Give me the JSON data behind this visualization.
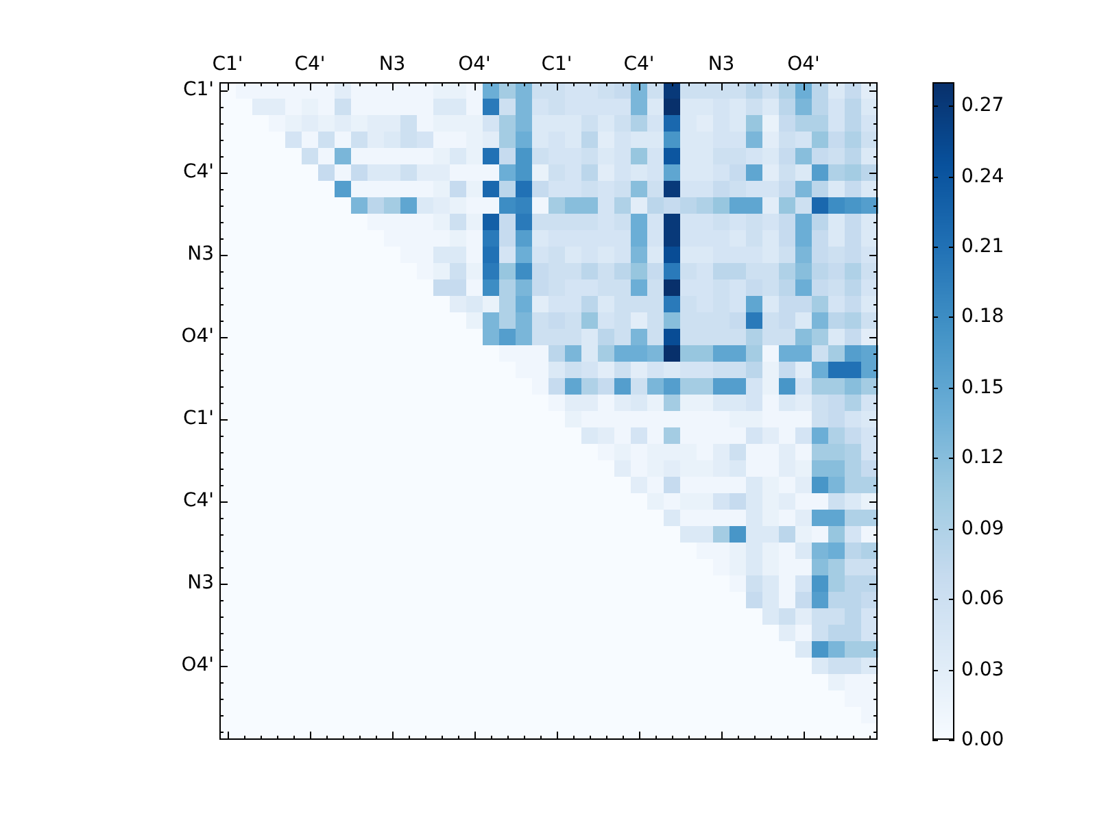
{
  "chart_data": {
    "type": "heatmap",
    "categories": [
      "C1'",
      null,
      null,
      null,
      null,
      "C4'",
      null,
      null,
      null,
      null,
      "N3",
      null,
      null,
      null,
      null,
      "O4'",
      null,
      null,
      null,
      null,
      "C1'",
      null,
      null,
      null,
      null,
      "C4'",
      null,
      null,
      null,
      null,
      "N3",
      null,
      null,
      null,
      null,
      "O4'",
      null,
      null,
      null,
      null
    ],
    "y_categories": [
      "C1'",
      null,
      null,
      null,
      null,
      "C4'",
      null,
      null,
      null,
      null,
      "N3",
      null,
      null,
      null,
      null,
      "O4'",
      null,
      null,
      null,
      null,
      "C1'",
      null,
      null,
      null,
      null,
      "C4'",
      null,
      null,
      null,
      null,
      "N3",
      null,
      null,
      null,
      null,
      "O4'",
      null,
      null,
      null,
      null
    ],
    "clim": [
      0,
      0.28
    ],
    "cticks": [
      {
        "value": 0,
        "label": "0.00"
      },
      {
        "value": 0.03,
        "label": "0.03"
      },
      {
        "value": 0.06,
        "label": "0.06"
      },
      {
        "value": 0.09,
        "label": "0.09"
      },
      {
        "value": 0.12,
        "label": "0.12"
      },
      {
        "value": 0.15,
        "label": "0.15"
      },
      {
        "value": 0.18,
        "label": "0.18"
      },
      {
        "value": 0.21,
        "label": "0.21"
      },
      {
        "value": 0.24,
        "label": "0.24"
      },
      {
        "value": 0.27,
        "label": "0.27"
      }
    ],
    "cells": [
      [
        0,
        0.01,
        0.01,
        0.01,
        0.01,
        0.01,
        0.01,
        0.03,
        0.01,
        0.01,
        0.01,
        0.01,
        0.01,
        0.02,
        0.02,
        0.01,
        0.14,
        0.1,
        0.13,
        0.06,
        0.06,
        0.05,
        0.05,
        0.06,
        0.07,
        0.13,
        0.06,
        0.27,
        0.06,
        0.06,
        0.06,
        0.06,
        0.08,
        0.06,
        0.09,
        0.14,
        0.08,
        0.04,
        0.07,
        0.03
      ],
      [
        0,
        0,
        0.03,
        0.03,
        0.01,
        0.02,
        0.01,
        0.06,
        0.01,
        0.01,
        0.01,
        0.01,
        0.01,
        0.04,
        0.04,
        0.01,
        0.2,
        0.06,
        0.13,
        0.05,
        0.06,
        0.05,
        0.05,
        0.05,
        0.05,
        0.13,
        0.04,
        0.28,
        0.04,
        0.04,
        0.05,
        0.04,
        0.06,
        0.04,
        0.08,
        0.13,
        0.08,
        0.05,
        0.08,
        0.04
      ],
      [
        0,
        0,
        0,
        0.01,
        0.02,
        0.03,
        0.02,
        0.03,
        0.02,
        0.03,
        0.03,
        0.06,
        0.01,
        0.02,
        0.02,
        0.02,
        0.05,
        0.1,
        0.13,
        0.04,
        0.04,
        0.04,
        0.06,
        0.04,
        0.06,
        0.09,
        0.05,
        0.22,
        0.04,
        0.03,
        0.05,
        0.04,
        0.11,
        0.02,
        0.07,
        0.09,
        0.09,
        0.05,
        0.08,
        0.05
      ],
      [
        0,
        0,
        0,
        0,
        0.05,
        0.01,
        0.06,
        0.01,
        0.06,
        0.03,
        0.04,
        0.06,
        0.05,
        0.01,
        0.01,
        0.02,
        0.03,
        0.1,
        0.14,
        0.04,
        0.05,
        0.04,
        0.08,
        0.03,
        0.05,
        0.04,
        0.04,
        0.17,
        0.04,
        0.04,
        0.05,
        0.05,
        0.13,
        0.03,
        0.06,
        0.05,
        0.11,
        0.07,
        0.09,
        0.06
      ],
      [
        0,
        0,
        0,
        0,
        0,
        0.06,
        0.01,
        0.13,
        0.01,
        0.01,
        0.01,
        0.01,
        0.01,
        0.02,
        0.04,
        0.02,
        0.21,
        0.07,
        0.17,
        0.06,
        0.05,
        0.05,
        0.06,
        0.04,
        0.05,
        0.11,
        0.05,
        0.24,
        0.04,
        0.04,
        0.06,
        0.06,
        0.05,
        0.04,
        0.07,
        0.12,
        0.07,
        0.06,
        0.08,
        0.04
      ],
      [
        0,
        0,
        0,
        0,
        0,
        0,
        0.07,
        0.01,
        0.07,
        0.04,
        0.04,
        0.06,
        0.03,
        0.03,
        0.01,
        0.01,
        0.01,
        0.14,
        0.17,
        0.02,
        0.06,
        0.05,
        0.08,
        0.03,
        0.05,
        0.04,
        0.05,
        0.15,
        0.04,
        0.04,
        0.05,
        0.07,
        0.15,
        0.03,
        0.06,
        0.04,
        0.16,
        0.09,
        0.1,
        0.08
      ],
      [
        0,
        0,
        0,
        0,
        0,
        0,
        0,
        0.16,
        0.01,
        0.01,
        0.01,
        0.01,
        0.01,
        0.02,
        0.07,
        0.02,
        0.22,
        0.08,
        0.21,
        0.07,
        0.05,
        0.05,
        0.06,
        0.05,
        0.06,
        0.12,
        0.06,
        0.27,
        0.05,
        0.05,
        0.07,
        0.06,
        0.05,
        0.05,
        0.07,
        0.13,
        0.08,
        0.04,
        0.07,
        0.04
      ],
      [
        0,
        0,
        0,
        0,
        0,
        0,
        0,
        0,
        0.13,
        0.08,
        0.1,
        0.15,
        0.04,
        0.03,
        0.02,
        0.01,
        0.01,
        0.18,
        0.19,
        0.01,
        0.1,
        0.12,
        0.12,
        0.05,
        0.09,
        0.03,
        0.08,
        0.07,
        0.08,
        0.09,
        0.11,
        0.15,
        0.15,
        0.03,
        0.11,
        0.06,
        0.22,
        0.18,
        0.17,
        0.16
      ],
      [
        0,
        0,
        0,
        0,
        0,
        0,
        0,
        0,
        0,
        0.01,
        0.01,
        0.01,
        0.01,
        0.02,
        0.06,
        0.02,
        0.23,
        0.07,
        0.2,
        0.06,
        0.06,
        0.06,
        0.06,
        0.05,
        0.06,
        0.14,
        0.05,
        0.27,
        0.05,
        0.05,
        0.06,
        0.05,
        0.06,
        0.05,
        0.07,
        0.14,
        0.08,
        0.04,
        0.07,
        0.04
      ],
      [
        0,
        0,
        0,
        0,
        0,
        0,
        0,
        0,
        0,
        0,
        0.01,
        0.01,
        0.01,
        0.01,
        0.02,
        0.01,
        0.2,
        0.07,
        0.16,
        0.04,
        0.05,
        0.05,
        0.05,
        0.05,
        0.05,
        0.14,
        0.05,
        0.27,
        0.05,
        0.05,
        0.05,
        0.04,
        0.06,
        0.04,
        0.07,
        0.14,
        0.07,
        0.04,
        0.07,
        0.04
      ],
      [
        0,
        0,
        0,
        0,
        0,
        0,
        0,
        0,
        0,
        0,
        0,
        0.01,
        0.01,
        0.04,
        0.04,
        0.01,
        0.21,
        0.05,
        0.14,
        0.05,
        0.06,
        0.04,
        0.05,
        0.04,
        0.05,
        0.13,
        0.04,
        0.25,
        0.04,
        0.04,
        0.05,
        0.05,
        0.05,
        0.04,
        0.06,
        0.13,
        0.07,
        0.06,
        0.07,
        0.05
      ],
      [
        0,
        0,
        0,
        0,
        0,
        0,
        0,
        0,
        0,
        0,
        0,
        0,
        0.01,
        0.02,
        0.06,
        0.02,
        0.2,
        0.11,
        0.18,
        0.07,
        0.06,
        0.06,
        0.08,
        0.06,
        0.08,
        0.11,
        0.07,
        0.2,
        0.06,
        0.05,
        0.08,
        0.08,
        0.06,
        0.06,
        0.09,
        0.12,
        0.08,
        0.07,
        0.09,
        0.06
      ],
      [
        0,
        0,
        0,
        0,
        0,
        0,
        0,
        0,
        0,
        0,
        0,
        0,
        0,
        0.07,
        0.07,
        0.01,
        0.18,
        0.09,
        0.13,
        0.07,
        0.06,
        0.05,
        0.05,
        0.06,
        0.06,
        0.14,
        0.06,
        0.28,
        0.05,
        0.05,
        0.06,
        0.05,
        0.07,
        0.06,
        0.08,
        0.14,
        0.07,
        0.06,
        0.08,
        0.05
      ],
      [
        0,
        0,
        0,
        0,
        0,
        0,
        0,
        0,
        0,
        0,
        0,
        0,
        0,
        0,
        0.03,
        0.04,
        0.02,
        0.09,
        0.14,
        0.03,
        0.05,
        0.05,
        0.08,
        0.04,
        0.06,
        0.06,
        0.06,
        0.2,
        0.06,
        0.05,
        0.06,
        0.05,
        0.15,
        0.04,
        0.07,
        0.07,
        0.1,
        0.05,
        0.07,
        0.04
      ],
      [
        0,
        0,
        0,
        0,
        0,
        0,
        0,
        0,
        0,
        0,
        0,
        0,
        0,
        0,
        0,
        0.02,
        0.13,
        0.09,
        0.13,
        0.06,
        0.07,
        0.06,
        0.11,
        0.05,
        0.06,
        0.03,
        0.06,
        0.12,
        0.06,
        0.06,
        0.06,
        0.07,
        0.2,
        0.06,
        0.07,
        0.04,
        0.13,
        0.08,
        0.09,
        0.06
      ],
      [
        0,
        0,
        0,
        0,
        0,
        0,
        0,
        0,
        0,
        0,
        0,
        0,
        0,
        0,
        0,
        0,
        0.13,
        0.16,
        0.13,
        0.06,
        0.06,
        0.06,
        0.04,
        0.08,
        0.06,
        0.13,
        0.06,
        0.25,
        0.06,
        0.06,
        0.06,
        0.06,
        0.09,
        0.06,
        0.06,
        0.12,
        0.1,
        0.04,
        0.07,
        0.03
      ],
      [
        0,
        0,
        0,
        0,
        0,
        0,
        0,
        0,
        0,
        0,
        0,
        0,
        0,
        0,
        0,
        0,
        0,
        0.01,
        0.01,
        0.01,
        0.08,
        0.13,
        0.04,
        0.1,
        0.14,
        0.14,
        0.13,
        0.28,
        0.11,
        0.11,
        0.15,
        0.15,
        0.1,
        0.01,
        0.14,
        0.14,
        0.06,
        0.1,
        0.16,
        0.15
      ],
      [
        0,
        0,
        0,
        0,
        0,
        0,
        0,
        0,
        0,
        0,
        0,
        0,
        0,
        0,
        0,
        0,
        0,
        0,
        0.01,
        0.01,
        0.04,
        0.06,
        0.05,
        0.03,
        0.06,
        0.03,
        0.05,
        0.04,
        0.05,
        0.05,
        0.06,
        0.06,
        0.08,
        0.02,
        0.07,
        0.03,
        0.14,
        0.21,
        0.21,
        0.15
      ],
      [
        0,
        0,
        0,
        0,
        0,
        0,
        0,
        0,
        0,
        0,
        0,
        0,
        0,
        0,
        0,
        0,
        0,
        0,
        0,
        0.01,
        0.07,
        0.15,
        0.09,
        0.07,
        0.16,
        0.06,
        0.13,
        0.16,
        0.1,
        0.1,
        0.16,
        0.16,
        0.05,
        0.02,
        0.17,
        0.05,
        0.1,
        0.1,
        0.12,
        0.1
      ],
      [
        0,
        0,
        0,
        0,
        0,
        0,
        0,
        0,
        0,
        0,
        0,
        0,
        0,
        0,
        0,
        0,
        0,
        0,
        0,
        0,
        0.01,
        0.03,
        0.03,
        0.01,
        0.03,
        0.04,
        0.02,
        0.1,
        0.02,
        0.02,
        0.04,
        0.04,
        0.05,
        0.01,
        0.04,
        0.03,
        0.06,
        0.07,
        0.09,
        0.05
      ],
      [
        0,
        0,
        0,
        0,
        0,
        0,
        0,
        0,
        0,
        0,
        0,
        0,
        0,
        0,
        0,
        0,
        0,
        0,
        0,
        0,
        0,
        0.02,
        0.01,
        0.01,
        0.01,
        0.01,
        0.01,
        0.01,
        0.01,
        0.01,
        0.01,
        0.02,
        0.02,
        0.01,
        0.01,
        0.01,
        0.06,
        0.07,
        0.05,
        0.04
      ],
      [
        0,
        0,
        0,
        0,
        0,
        0,
        0,
        0,
        0,
        0,
        0,
        0,
        0,
        0,
        0,
        0,
        0,
        0,
        0,
        0,
        0,
        0,
        0.04,
        0.03,
        0.01,
        0.05,
        0.01,
        0.1,
        0.01,
        0.01,
        0.01,
        0.01,
        0.05,
        0.03,
        0.01,
        0.05,
        0.14,
        0.09,
        0.07,
        0.05
      ],
      [
        0,
        0,
        0,
        0,
        0,
        0,
        0,
        0,
        0,
        0,
        0,
        0,
        0,
        0,
        0,
        0,
        0,
        0,
        0,
        0,
        0,
        0,
        0,
        0.01,
        0.02,
        0.01,
        0.02,
        0.02,
        0.02,
        0.01,
        0.03,
        0.06,
        0.01,
        0.01,
        0.03,
        0.01,
        0.1,
        0.1,
        0.09,
        0.05
      ],
      [
        0,
        0,
        0,
        0,
        0,
        0,
        0,
        0,
        0,
        0,
        0,
        0,
        0,
        0,
        0,
        0,
        0,
        0,
        0,
        0,
        0,
        0,
        0,
        0,
        0.03,
        0.01,
        0.02,
        0.03,
        0.02,
        0.02,
        0.03,
        0.04,
        0.01,
        0.01,
        0.03,
        0.02,
        0.12,
        0.12,
        0.09,
        0.07
      ],
      [
        0,
        0,
        0,
        0,
        0,
        0,
        0,
        0,
        0,
        0,
        0,
        0,
        0,
        0,
        0,
        0,
        0,
        0,
        0,
        0,
        0,
        0,
        0,
        0,
        0,
        0.03,
        0.01,
        0.07,
        0.01,
        0.01,
        0.01,
        0.01,
        0.04,
        0.02,
        0.01,
        0.03,
        0.17,
        0.13,
        0.09,
        0.09
      ],
      [
        0,
        0,
        0,
        0,
        0,
        0,
        0,
        0,
        0,
        0,
        0,
        0,
        0,
        0,
        0,
        0,
        0,
        0,
        0,
        0,
        0,
        0,
        0,
        0,
        0,
        0,
        0.02,
        0.01,
        0.02,
        0.02,
        0.05,
        0.07,
        0.04,
        0.02,
        0.03,
        0.01,
        0.01,
        0.06,
        0.04,
        0.02
      ],
      [
        0,
        0,
        0,
        0,
        0,
        0,
        0,
        0,
        0,
        0,
        0,
        0,
        0,
        0,
        0,
        0,
        0,
        0,
        0,
        0,
        0,
        0,
        0,
        0,
        0,
        0,
        0,
        0.04,
        0.01,
        0.01,
        0.01,
        0.01,
        0.04,
        0.02,
        0.01,
        0.03,
        0.15,
        0.15,
        0.09,
        0.09
      ],
      [
        0,
        0,
        0,
        0,
        0,
        0,
        0,
        0,
        0,
        0,
        0,
        0,
        0,
        0,
        0,
        0,
        0,
        0,
        0,
        0,
        0,
        0,
        0,
        0,
        0,
        0,
        0,
        0,
        0.04,
        0.04,
        0.1,
        0.17,
        0.04,
        0.04,
        0.08,
        0.02,
        0.01,
        0.11,
        0.05,
        0.01
      ],
      [
        0,
        0,
        0,
        0,
        0,
        0,
        0,
        0,
        0,
        0,
        0,
        0,
        0,
        0,
        0,
        0,
        0,
        0,
        0,
        0,
        0,
        0,
        0,
        0,
        0,
        0,
        0,
        0,
        0,
        0.01,
        0.01,
        0.02,
        0.04,
        0.02,
        0.01,
        0.04,
        0.13,
        0.14,
        0.08,
        0.09
      ],
      [
        0,
        0,
        0,
        0,
        0,
        0,
        0,
        0,
        0,
        0,
        0,
        0,
        0,
        0,
        0,
        0,
        0,
        0,
        0,
        0,
        0,
        0,
        0,
        0,
        0,
        0,
        0,
        0,
        0,
        0,
        0.01,
        0.02,
        0.04,
        0.02,
        0.01,
        0.01,
        0.12,
        0.1,
        0.06,
        0.06
      ],
      [
        0,
        0,
        0,
        0,
        0,
        0,
        0,
        0,
        0,
        0,
        0,
        0,
        0,
        0,
        0,
        0,
        0,
        0,
        0,
        0,
        0,
        0,
        0,
        0,
        0,
        0,
        0,
        0,
        0,
        0,
        0,
        0.01,
        0.06,
        0.04,
        0.01,
        0.05,
        0.17,
        0.1,
        0.08,
        0.08
      ],
      [
        0,
        0,
        0,
        0,
        0,
        0,
        0,
        0,
        0,
        0,
        0,
        0,
        0,
        0,
        0,
        0,
        0,
        0,
        0,
        0,
        0,
        0,
        0,
        0,
        0,
        0,
        0,
        0,
        0,
        0,
        0,
        0,
        0.07,
        0.04,
        0.01,
        0.07,
        0.16,
        0.08,
        0.08,
        0.07
      ],
      [
        0,
        0,
        0,
        0,
        0,
        0,
        0,
        0,
        0,
        0,
        0,
        0,
        0,
        0,
        0,
        0,
        0,
        0,
        0,
        0,
        0,
        0,
        0,
        0,
        0,
        0,
        0,
        0,
        0,
        0,
        0,
        0,
        0,
        0.04,
        0.06,
        0.03,
        0.06,
        0.06,
        0.08,
        0.05
      ],
      [
        0,
        0,
        0,
        0,
        0,
        0,
        0,
        0,
        0,
        0,
        0,
        0,
        0,
        0,
        0,
        0,
        0,
        0,
        0,
        0,
        0,
        0,
        0,
        0,
        0,
        0,
        0,
        0,
        0,
        0,
        0,
        0,
        0,
        0,
        0.03,
        0.01,
        0.06,
        0.08,
        0.08,
        0.05
      ],
      [
        0,
        0,
        0,
        0,
        0,
        0,
        0,
        0,
        0,
        0,
        0,
        0,
        0,
        0,
        0,
        0,
        0,
        0,
        0,
        0,
        0,
        0,
        0,
        0,
        0,
        0,
        0,
        0,
        0,
        0,
        0,
        0,
        0,
        0,
        0,
        0.04,
        0.17,
        0.13,
        0.1,
        0.1
      ],
      [
        0,
        0,
        0,
        0,
        0,
        0,
        0,
        0,
        0,
        0,
        0,
        0,
        0,
        0,
        0,
        0,
        0,
        0,
        0,
        0,
        0,
        0,
        0,
        0,
        0,
        0,
        0,
        0,
        0,
        0,
        0,
        0,
        0,
        0,
        0,
        0,
        0.04,
        0.06,
        0.06,
        0.04
      ],
      [
        0,
        0,
        0,
        0,
        0,
        0,
        0,
        0,
        0,
        0,
        0,
        0,
        0,
        0,
        0,
        0,
        0,
        0,
        0,
        0,
        0,
        0,
        0,
        0,
        0,
        0,
        0,
        0,
        0,
        0,
        0,
        0,
        0,
        0,
        0,
        0,
        0,
        0.02,
        0.01,
        0.01
      ],
      [
        0,
        0,
        0,
        0,
        0,
        0,
        0,
        0,
        0,
        0,
        0,
        0,
        0,
        0,
        0,
        0,
        0,
        0,
        0,
        0,
        0,
        0,
        0,
        0,
        0,
        0,
        0,
        0,
        0,
        0,
        0,
        0,
        0,
        0,
        0,
        0,
        0,
        0,
        0.01,
        0.01
      ],
      [
        0,
        0,
        0,
        0,
        0,
        0,
        0,
        0,
        0,
        0,
        0,
        0,
        0,
        0,
        0,
        0,
        0,
        0,
        0,
        0,
        0,
        0,
        0,
        0,
        0,
        0,
        0,
        0,
        0,
        0,
        0,
        0,
        0,
        0,
        0,
        0,
        0,
        0,
        0,
        0.01
      ],
      [
        0,
        0,
        0,
        0,
        0,
        0,
        0,
        0,
        0,
        0,
        0,
        0,
        0,
        0,
        0,
        0,
        0,
        0,
        0,
        0,
        0,
        0,
        0,
        0,
        0,
        0,
        0,
        0,
        0,
        0,
        0,
        0,
        0,
        0,
        0,
        0,
        0,
        0,
        0,
        0
      ]
    ]
  }
}
